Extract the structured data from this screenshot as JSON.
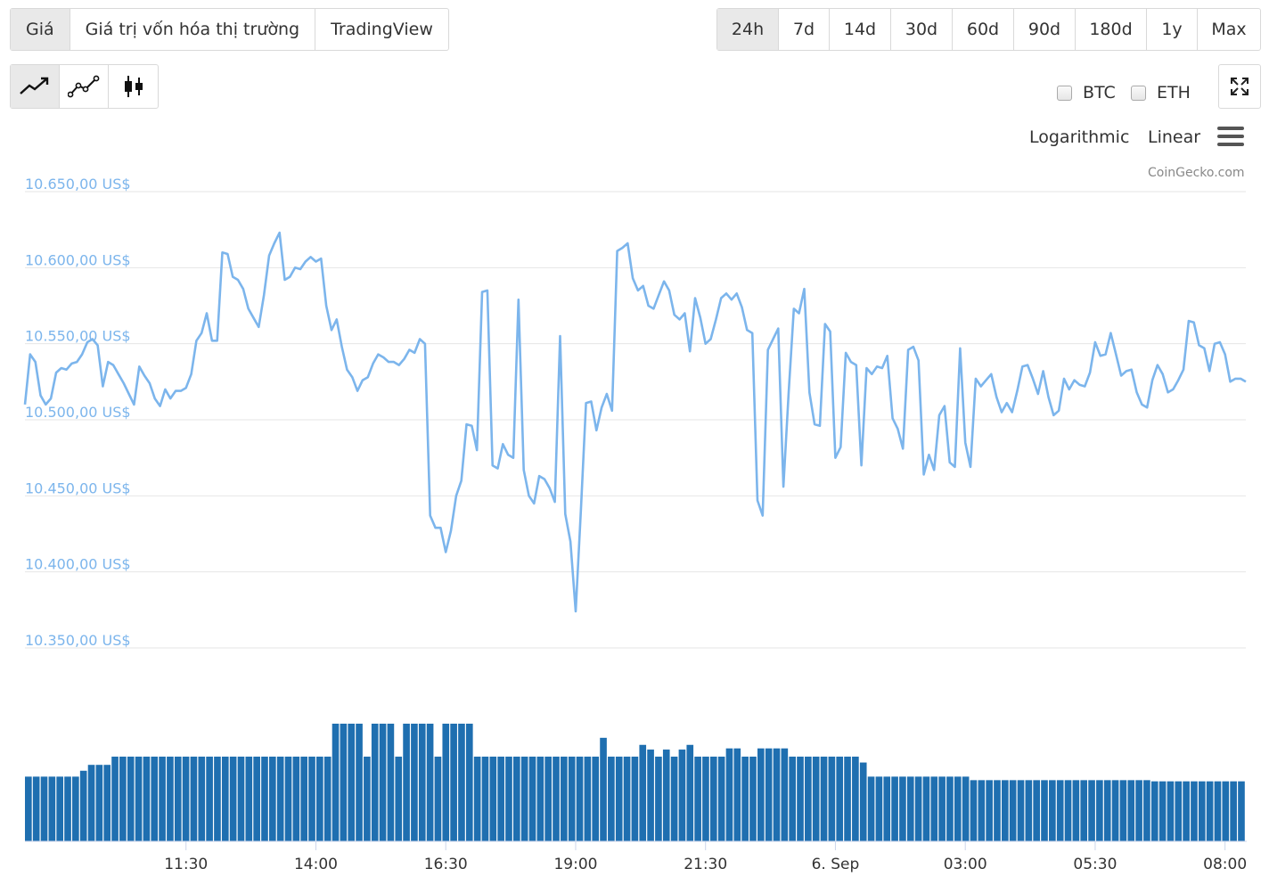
{
  "view_tabs": [
    "Giá",
    "Giá trị vốn hóa thị trường",
    "TradingView"
  ],
  "range_tabs": [
    "24h",
    "7d",
    "14d",
    "30d",
    "60d",
    "90d",
    "180d",
    "1y",
    "Max"
  ],
  "compare": {
    "btc": "BTC",
    "eth": "ETH"
  },
  "scale": {
    "log": "Logarithmic",
    "linear": "Linear"
  },
  "credit": "CoinGecko.com",
  "icons": {
    "line": "line-chart-icon",
    "point": "point-line-icon",
    "candle": "candlestick-icon",
    "expand": "expand-icon",
    "menu": "hamburger-menu-icon"
  },
  "colors": {
    "price_line": "#7cb5ec",
    "volume_bar": "#1f6fb0",
    "grid": "#e6e6e6",
    "axis_label": "#7cb5ec"
  },
  "chart_data": {
    "type": "line",
    "ylim": [
      10350,
      10650
    ],
    "y_ticks": [
      10350,
      10400,
      10450,
      10500,
      10550,
      10600,
      10650
    ],
    "y_tick_labels": [
      "10.350,00 US$",
      "10.400,00 US$",
      "10.450,00 US$",
      "10.500,00 US$",
      "10.550,00 US$",
      "10.600,00 US$",
      "10.650,00 US$"
    ],
    "x_tick_labels": [
      "11:30",
      "14:00",
      "16:30",
      "19:00",
      "21:30",
      "6. Sep",
      "03:00",
      "05:30",
      "08:00"
    ],
    "x_tick_hours": [
      3.1,
      5.6,
      8.1,
      10.6,
      13.1,
      15.6,
      18.1,
      20.6,
      23.1
    ],
    "x_range_hours": [
      0,
      23.5
    ],
    "price_series": [
      [
        0.0,
        10510
      ],
      [
        0.1,
        10543
      ],
      [
        0.2,
        10538
      ],
      [
        0.3,
        10516
      ],
      [
        0.4,
        10510
      ],
      [
        0.5,
        10514
      ],
      [
        0.6,
        10531
      ],
      [
        0.7,
        10534
      ],
      [
        0.8,
        10533
      ],
      [
        0.9,
        10537
      ],
      [
        1.0,
        10538
      ],
      [
        1.1,
        10543
      ],
      [
        1.2,
        10551
      ],
      [
        1.3,
        10553
      ],
      [
        1.4,
        10549
      ],
      [
        1.5,
        10522
      ],
      [
        1.6,
        10538
      ],
      [
        1.7,
        10536
      ],
      [
        1.8,
        10530
      ],
      [
        1.9,
        10524
      ],
      [
        2.0,
        10517
      ],
      [
        2.1,
        10510
      ],
      [
        2.2,
        10535
      ],
      [
        2.3,
        10529
      ],
      [
        2.4,
        10524
      ],
      [
        2.5,
        10514
      ],
      [
        2.6,
        10509
      ],
      [
        2.7,
        10520
      ],
      [
        2.8,
        10514
      ],
      [
        2.9,
        10519
      ],
      [
        3.0,
        10519
      ],
      [
        3.1,
        10521
      ],
      [
        3.2,
        10530
      ],
      [
        3.3,
        10552
      ],
      [
        3.4,
        10557
      ],
      [
        3.5,
        10570
      ],
      [
        3.6,
        10552
      ],
      [
        3.7,
        10552
      ],
      [
        3.8,
        10610
      ],
      [
        3.9,
        10609
      ],
      [
        4.0,
        10594
      ],
      [
        4.1,
        10592
      ],
      [
        4.2,
        10586
      ],
      [
        4.3,
        10573
      ],
      [
        4.4,
        10567
      ],
      [
        4.5,
        10561
      ],
      [
        4.6,
        10582
      ],
      [
        4.7,
        10608
      ],
      [
        4.8,
        10616
      ],
      [
        4.9,
        10623
      ],
      [
        5.0,
        10592
      ],
      [
        5.1,
        10594
      ],
      [
        5.2,
        10600
      ],
      [
        5.3,
        10599
      ],
      [
        5.4,
        10604
      ],
      [
        5.5,
        10607
      ],
      [
        5.6,
        10604
      ],
      [
        5.7,
        10606
      ],
      [
        5.8,
        10575
      ],
      [
        5.9,
        10559
      ],
      [
        6.0,
        10566
      ],
      [
        6.1,
        10548
      ],
      [
        6.2,
        10533
      ],
      [
        6.3,
        10528
      ],
      [
        6.4,
        10519
      ],
      [
        6.5,
        10526
      ],
      [
        6.6,
        10528
      ],
      [
        6.7,
        10537
      ],
      [
        6.8,
        10543
      ],
      [
        6.9,
        10541
      ],
      [
        7.0,
        10538
      ],
      [
        7.1,
        10538
      ],
      [
        7.2,
        10536
      ],
      [
        7.3,
        10540
      ],
      [
        7.4,
        10546
      ],
      [
        7.5,
        10544
      ],
      [
        7.6,
        10553
      ],
      [
        7.7,
        10550
      ],
      [
        7.8,
        10437
      ],
      [
        7.9,
        10429
      ],
      [
        8.0,
        10429
      ],
      [
        8.1,
        10413
      ],
      [
        8.2,
        10427
      ],
      [
        8.3,
        10450
      ],
      [
        8.4,
        10460
      ],
      [
        8.5,
        10497
      ],
      [
        8.6,
        10496
      ],
      [
        8.7,
        10480
      ],
      [
        8.8,
        10584
      ],
      [
        8.9,
        10585
      ],
      [
        9.0,
        10470
      ],
      [
        9.1,
        10468
      ],
      [
        9.2,
        10484
      ],
      [
        9.3,
        10477
      ],
      [
        9.4,
        10475
      ],
      [
        9.5,
        10579
      ],
      [
        9.6,
        10467
      ],
      [
        9.7,
        10450
      ],
      [
        9.8,
        10445
      ],
      [
        9.9,
        10463
      ],
      [
        10.0,
        10461
      ],
      [
        10.1,
        10455
      ],
      [
        10.2,
        10446
      ],
      [
        10.3,
        10555
      ],
      [
        10.4,
        10438
      ],
      [
        10.5,
        10420
      ],
      [
        10.6,
        10374
      ],
      [
        10.7,
        10440
      ],
      [
        10.8,
        10511
      ],
      [
        10.9,
        10512
      ],
      [
        11.0,
        10493
      ],
      [
        11.1,
        10508
      ],
      [
        11.2,
        10517
      ],
      [
        11.3,
        10506
      ],
      [
        11.4,
        10611
      ],
      [
        11.5,
        10613
      ],
      [
        11.6,
        10616
      ],
      [
        11.7,
        10593
      ],
      [
        11.8,
        10585
      ],
      [
        11.9,
        10588
      ],
      [
        12.0,
        10575
      ],
      [
        12.1,
        10573
      ],
      [
        12.2,
        10582
      ],
      [
        12.3,
        10591
      ],
      [
        12.4,
        10585
      ],
      [
        12.5,
        10569
      ],
      [
        12.6,
        10566
      ],
      [
        12.7,
        10570
      ],
      [
        12.8,
        10545
      ],
      [
        12.9,
        10580
      ],
      [
        13.0,
        10567
      ],
      [
        13.1,
        10550
      ],
      [
        13.2,
        10553
      ],
      [
        13.3,
        10566
      ],
      [
        13.4,
        10580
      ],
      [
        13.5,
        10583
      ],
      [
        13.6,
        10579
      ],
      [
        13.7,
        10583
      ],
      [
        13.8,
        10574
      ],
      [
        13.9,
        10559
      ],
      [
        14.0,
        10557
      ],
      [
        14.1,
        10447
      ],
      [
        14.2,
        10437
      ],
      [
        14.3,
        10546
      ],
      [
        14.4,
        10553
      ],
      [
        14.5,
        10560
      ],
      [
        14.6,
        10456
      ],
      [
        14.7,
        10518
      ],
      [
        14.8,
        10573
      ],
      [
        14.9,
        10570
      ],
      [
        15.0,
        10586
      ],
      [
        15.1,
        10518
      ],
      [
        15.2,
        10497
      ],
      [
        15.3,
        10496
      ],
      [
        15.4,
        10563
      ],
      [
        15.5,
        10558
      ],
      [
        15.6,
        10475
      ],
      [
        15.7,
        10482
      ],
      [
        15.8,
        10544
      ],
      [
        15.9,
        10538
      ],
      [
        16.0,
        10536
      ],
      [
        16.1,
        10470
      ],
      [
        16.2,
        10534
      ],
      [
        16.3,
        10530
      ],
      [
        16.4,
        10535
      ],
      [
        16.5,
        10534
      ],
      [
        16.6,
        10542
      ],
      [
        16.7,
        10501
      ],
      [
        16.8,
        10494
      ],
      [
        16.9,
        10481
      ],
      [
        17.0,
        10546
      ],
      [
        17.1,
        10548
      ],
      [
        17.2,
        10539
      ],
      [
        17.3,
        10464
      ],
      [
        17.4,
        10477
      ],
      [
        17.5,
        10467
      ],
      [
        17.6,
        10503
      ],
      [
        17.7,
        10509
      ],
      [
        17.8,
        10472
      ],
      [
        17.9,
        10469
      ],
      [
        18.0,
        10547
      ],
      [
        18.1,
        10485
      ],
      [
        18.2,
        10469
      ],
      [
        18.3,
        10527
      ],
      [
        18.4,
        10522
      ],
      [
        18.5,
        10526
      ],
      [
        18.6,
        10530
      ],
      [
        18.7,
        10515
      ],
      [
        18.8,
        10505
      ],
      [
        18.9,
        10511
      ],
      [
        19.0,
        10505
      ],
      [
        19.1,
        10519
      ],
      [
        19.2,
        10535
      ],
      [
        19.3,
        10536
      ],
      [
        19.4,
        10527
      ],
      [
        19.5,
        10517
      ],
      [
        19.6,
        10532
      ],
      [
        19.7,
        10515
      ],
      [
        19.8,
        10503
      ],
      [
        19.9,
        10506
      ],
      [
        20.0,
        10527
      ],
      [
        20.1,
        10520
      ],
      [
        20.2,
        10526
      ],
      [
        20.3,
        10523
      ],
      [
        20.4,
        10522
      ],
      [
        20.5,
        10531
      ],
      [
        20.6,
        10551
      ],
      [
        20.7,
        10542
      ],
      [
        20.8,
        10543
      ],
      [
        20.9,
        10557
      ],
      [
        21.0,
        10543
      ],
      [
        21.1,
        10529
      ],
      [
        21.2,
        10532
      ],
      [
        21.3,
        10533
      ],
      [
        21.4,
        10518
      ],
      [
        21.5,
        10510
      ],
      [
        21.6,
        10508
      ],
      [
        21.7,
        10526
      ],
      [
        21.8,
        10536
      ],
      [
        21.9,
        10530
      ],
      [
        22.0,
        10518
      ],
      [
        22.1,
        10520
      ]
    ],
    "price_series_tail": [
      [
        22.2,
        10526
      ],
      [
        22.3,
        10533
      ],
      [
        22.4,
        10565
      ],
      [
        22.5,
        10564
      ],
      [
        22.6,
        10549
      ],
      [
        22.7,
        10547
      ],
      [
        22.8,
        10532
      ],
      [
        22.9,
        10550
      ],
      [
        23.0,
        10551
      ],
      [
        23.1,
        10543
      ],
      [
        23.2,
        10525
      ],
      [
        23.3,
        10527
      ],
      [
        23.4,
        10527
      ],
      [
        23.5,
        10525
      ]
    ],
    "volume_bars_relative": [
      0.55,
      0.55,
      0.55,
      0.55,
      0.55,
      0.55,
      0.55,
      0.6,
      0.65,
      0.65,
      0.65,
      0.72,
      0.72,
      0.72,
      0.72,
      0.72,
      0.72,
      0.72,
      0.72,
      0.72,
      0.72,
      0.72,
      0.72,
      0.72,
      0.72,
      0.72,
      0.72,
      0.72,
      0.72,
      0.72,
      0.72,
      0.72,
      0.72,
      0.72,
      0.72,
      0.72,
      0.72,
      0.72,
      0.72,
      1.0,
      1.0,
      1.0,
      1.0,
      0.72,
      1.0,
      1.0,
      1.0,
      0.72,
      1.0,
      1.0,
      1.0,
      1.0,
      0.72,
      1.0,
      1.0,
      1.0,
      1.0,
      0.72,
      0.72,
      0.72,
      0.72,
      0.72,
      0.72,
      0.72,
      0.72,
      0.72,
      0.72,
      0.72,
      0.72,
      0.72,
      0.72,
      0.72,
      0.72,
      0.88,
      0.72,
      0.72,
      0.72,
      0.72,
      0.82,
      0.78,
      0.72,
      0.78,
      0.72,
      0.78,
      0.82,
      0.72,
      0.72,
      0.72,
      0.72,
      0.79,
      0.79,
      0.72,
      0.72,
      0.79,
      0.79,
      0.79,
      0.79,
      0.72,
      0.72,
      0.72,
      0.72,
      0.72,
      0.72,
      0.72,
      0.72,
      0.72,
      0.67,
      0.55,
      0.55,
      0.55,
      0.55,
      0.55,
      0.55,
      0.55,
      0.55,
      0.55,
      0.55,
      0.55,
      0.55,
      0.55,
      0.52,
      0.52,
      0.52,
      0.52,
      0.52,
      0.52,
      0.52,
      0.52,
      0.52,
      0.52,
      0.52,
      0.52,
      0.52,
      0.52,
      0.52,
      0.52,
      0.52,
      0.52,
      0.52,
      0.52,
      0.52,
      0.52,
      0.52,
      0.51,
      0.51,
      0.51,
      0.51,
      0.51,
      0.51,
      0.51,
      0.51,
      0.51,
      0.51,
      0.51,
      0.51
    ]
  }
}
